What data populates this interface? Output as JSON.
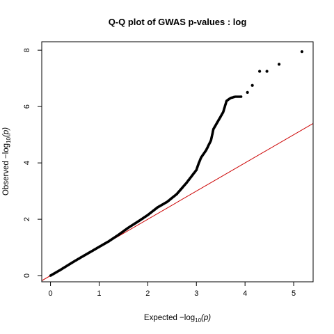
{
  "chart_data": {
    "type": "scatter",
    "title": "Q-Q plot of GWAS p-values : log",
    "xlabel": {
      "prefix": "Expected  −log",
      "sub": "10",
      "suffix": "(p)"
    },
    "ylabel": {
      "prefix": "Observed  −log",
      "sub": "10",
      "suffix": "(p)"
    },
    "xlim": [
      -0.18,
      5.4
    ],
    "ylim": [
      -0.22,
      8.3
    ],
    "xticks": [
      0,
      1,
      2,
      3,
      4,
      5
    ],
    "yticks": [
      0,
      2,
      4,
      6,
      8
    ],
    "xtick_labels": [
      "0",
      "1",
      "2",
      "3",
      "4",
      "5"
    ],
    "ytick_labels": [
      "0",
      "2",
      "4",
      "6",
      "8"
    ],
    "grid": false,
    "legend": "none",
    "reference_line": {
      "label": "y = x",
      "color": "#cc0000"
    },
    "point_color": "#000000",
    "series": [
      {
        "curve": [
          [
            0.0,
            0.0
          ],
          [
            0.2,
            0.2
          ],
          [
            0.5,
            0.52
          ],
          [
            0.8,
            0.82
          ],
          [
            1.0,
            1.02
          ],
          [
            1.2,
            1.22
          ],
          [
            1.4,
            1.45
          ],
          [
            1.6,
            1.7
          ],
          [
            1.8,
            1.92
          ],
          [
            2.0,
            2.15
          ],
          [
            2.2,
            2.42
          ],
          [
            2.4,
            2.62
          ],
          [
            2.6,
            2.9
          ],
          [
            2.8,
            3.3
          ],
          [
            3.0,
            3.75
          ],
          [
            3.05,
            4.0
          ],
          [
            3.1,
            4.2
          ],
          [
            3.2,
            4.45
          ],
          [
            3.3,
            4.8
          ],
          [
            3.35,
            5.2
          ],
          [
            3.45,
            5.5
          ],
          [
            3.55,
            5.8
          ],
          [
            3.62,
            6.2
          ],
          [
            3.7,
            6.3
          ],
          [
            3.8,
            6.35
          ],
          [
            3.92,
            6.35
          ]
        ],
        "extra_points": [
          [
            4.05,
            6.5
          ],
          [
            4.15,
            6.75
          ],
          [
            4.3,
            7.25
          ],
          [
            4.45,
            7.25
          ],
          [
            4.7,
            7.5
          ],
          [
            5.17,
            7.95
          ]
        ]
      }
    ]
  }
}
